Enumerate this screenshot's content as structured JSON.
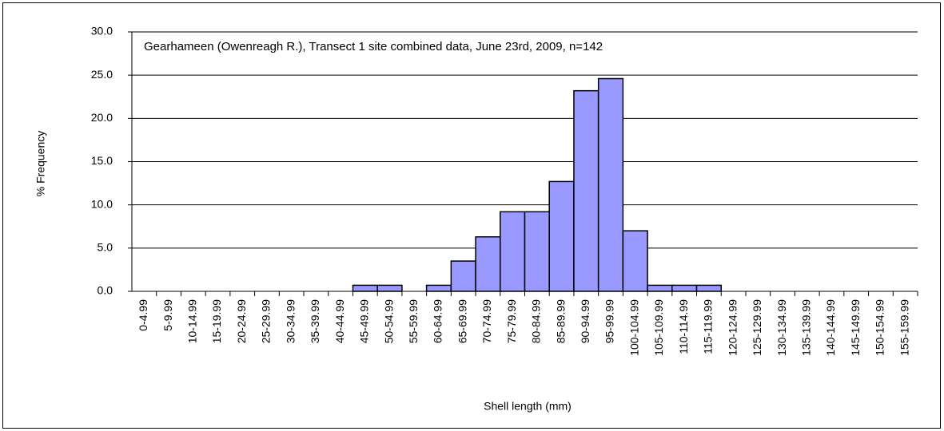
{
  "chart_data": {
    "type": "bar",
    "title": "Gearhameen (Owenreagh R.), Transect 1 site combined data, June 23rd, 2009, n=142",
    "ylabel": "% Frequency",
    "xlabel": "Shell length (mm)",
    "categories": [
      "0-4.99",
      "5-9.99",
      "10-14.99",
      "15-19.99",
      "20-24.99",
      "25-29.99",
      "30-34.99",
      "35-39.99",
      "40-44.99",
      "45-49.99",
      "50-54.99",
      "55-59.99",
      "60-64.99",
      "65-69.99",
      "70-74.99",
      "75-79.99",
      "80-84.99",
      "85-89.99",
      "90-94.99",
      "95-99.99",
      "100-104.99",
      "105-109.99",
      "110-114.99",
      "115-119.99",
      "120-124.99",
      "125-129.99",
      "130-134.99",
      "135-139.99",
      "140-144.99",
      "145-149.99",
      "150-154.99",
      "155-159.99"
    ],
    "values": [
      0,
      0,
      0,
      0,
      0,
      0,
      0,
      0,
      0,
      0.7,
      0.7,
      0,
      0.7,
      3.5,
      6.3,
      9.2,
      9.2,
      12.7,
      23.2,
      24.6,
      7.0,
      0.7,
      0.7,
      0.7,
      0,
      0,
      0,
      0,
      0,
      0,
      0,
      0
    ],
    "color": "#9999ff",
    "ylim": [
      0,
      30
    ],
    "yticks": [
      {
        "value": 0,
        "label": "0.0"
      },
      {
        "value": 5,
        "label": "5.0"
      },
      {
        "value": 10,
        "label": "10.0"
      },
      {
        "value": 15,
        "label": "15.0"
      },
      {
        "value": 20,
        "label": "20.0"
      },
      {
        "value": 25,
        "label": "25.0"
      },
      {
        "value": 30,
        "label": "30.0"
      }
    ],
    "grid": true
  }
}
